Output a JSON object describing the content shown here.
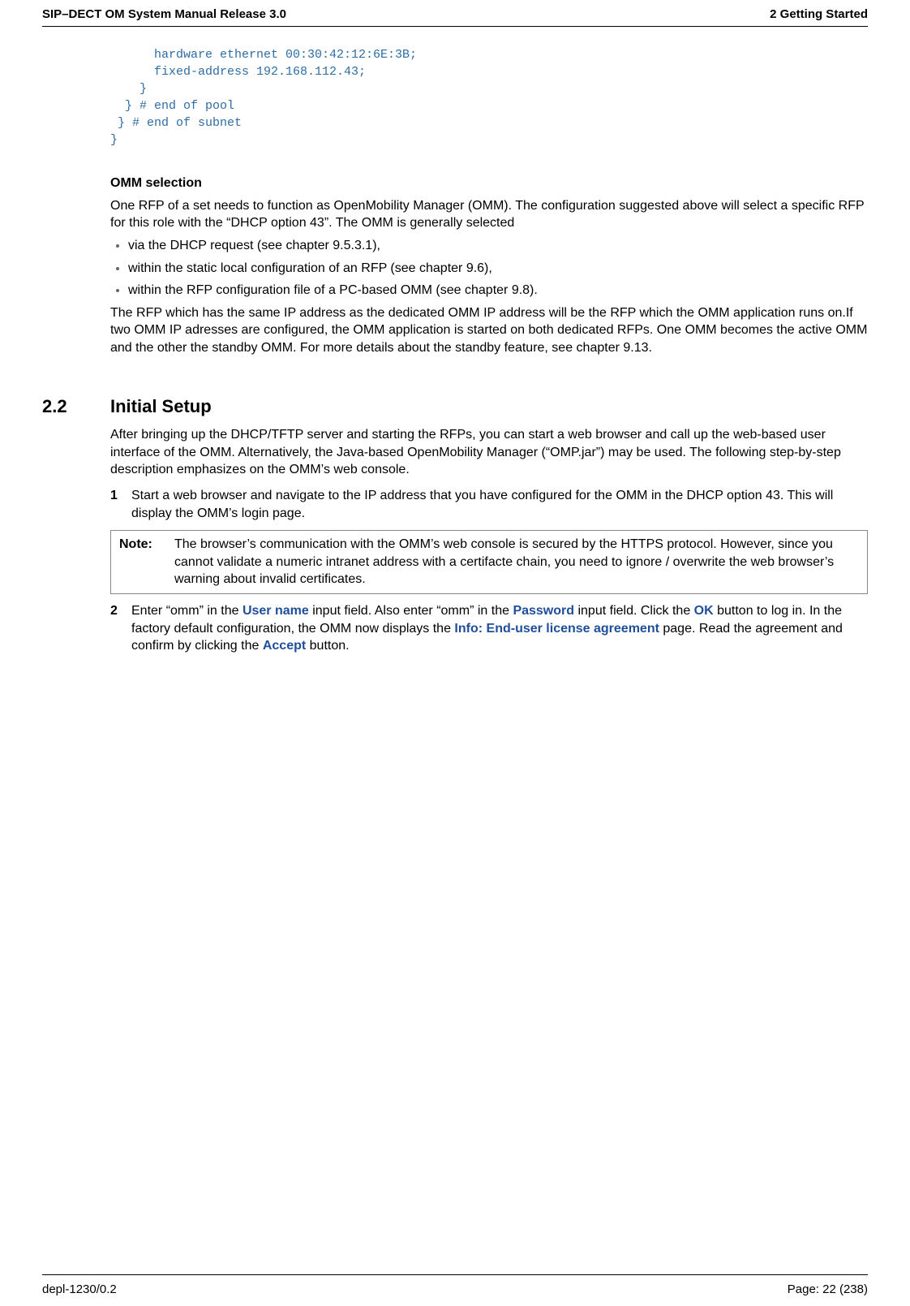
{
  "header": {
    "left": "SIP–DECT OM System Manual Release 3.0",
    "right": "2 Getting Started"
  },
  "code": {
    "l1": "      hardware ethernet 00:30:42:12:6E:3B;",
    "l2": "      fixed-address 192.168.112.43;",
    "l3": "    }",
    "l4": "  } # end of pool",
    "l5": " } # end of subnet",
    "l6": "}"
  },
  "omm": {
    "title": "OMM selection",
    "p1": "One RFP of a set needs to function as OpenMobility Manager (OMM). The configuration suggested above will select a specific RFP for this role with the “DHCP option 43”. The OMM is generally selected",
    "b1": "via the DHCP request (see chapter 9.5.3.1),",
    "b2": "within the static local configuration of an RFP (see chapter 9.6),",
    "b3": "within the RFP configuration file of a PC-based OMM (see chapter 9.8).",
    "p2": "The RFP which has the same IP address as the dedicated OMM IP address will be the RFP which the OMM application runs on.If two OMM IP adresses are configured, the OMM application is started on both dedicated RFPs. One OMM becomes the active OMM and the other the standby OMM. For more details about the standby feature, see chapter 9.13."
  },
  "setup": {
    "num": "2.2",
    "heading": "Initial Setup",
    "p1": "After bringing up the DHCP/TFTP server and starting the RFPs, you can start a web browser and call up the web-based user interface of the OMM. Alternatively, the Java-based OpenMobility Manager (“OMP.jar”) may be used. The following step-by-step description emphasizes on the OMM’s web console.",
    "s1n": "1",
    "s1": "Start a web browser and navigate to the IP address that you have configured for the OMM in the DHCP option 43. This will display the OMM’s login page.",
    "note_label": "Note:",
    "note": "The browser’s communication with the OMM’s web console is secured by the HTTPS protocol. However, since you cannot validate a numeric intranet address with a certifacte chain, you need to ignore / overwrite the web browser’s warning about invalid certificates.",
    "s2n": "2",
    "s2a": "Enter “omm” in the ",
    "s2_user": "User name",
    "s2b": " input field. Also enter “omm” in the ",
    "s2_pass": "Password",
    "s2c": " input field. Click the ",
    "s2_ok": "OK",
    "s2d": " button to log in. In the factory default configuration, the OMM now displays the ",
    "s2_info": "Info: End-user license agreement",
    "s2e": " page. Read the agreement and confirm by clicking the ",
    "s2_accept": "Accept",
    "s2f": " button."
  },
  "footer": {
    "left": "depl-1230/0.2",
    "right": "Page: 22 (238)"
  }
}
